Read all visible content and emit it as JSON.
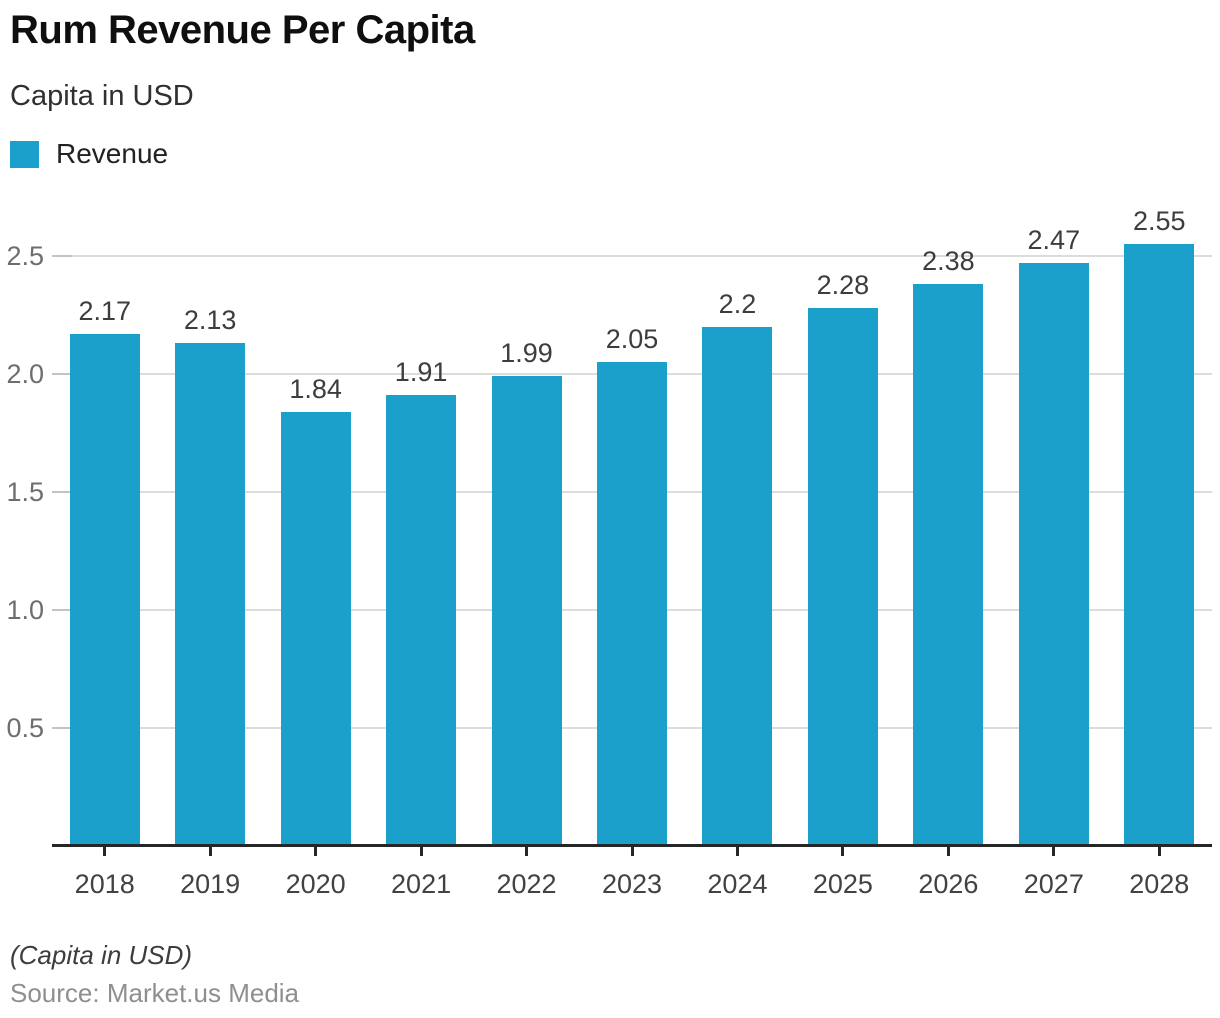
{
  "header": {
    "title": "Rum Revenue Per Capita",
    "subtitle": "Capita in USD",
    "legend": {
      "label": "Revenue",
      "swatch_color": "#1aa0cb"
    }
  },
  "chart_data": {
    "type": "bar",
    "title": "Rum Revenue Per Capita",
    "subtitle": "Capita in USD",
    "categories": [
      "2018",
      "2019",
      "2020",
      "2021",
      "2022",
      "2023",
      "2024",
      "2025",
      "2026",
      "2027",
      "2028"
    ],
    "series": [
      {
        "name": "Revenue",
        "values": [
          2.17,
          2.13,
          1.84,
          1.91,
          1.99,
          2.05,
          2.2,
          2.28,
          2.38,
          2.47,
          2.55
        ]
      }
    ],
    "value_labels": [
      "2.17",
      "2.13",
      "1.84",
      "1.91",
      "1.99",
      "2.05",
      "2.2",
      "2.28",
      "2.38",
      "2.47",
      "2.55"
    ],
    "xlabel": "",
    "ylabel": "",
    "ylim": [
      0,
      2.61
    ],
    "yticks": [
      0.5,
      1.0,
      1.5,
      2.0,
      2.5
    ],
    "ytick_labels": [
      "0.5",
      "1.0",
      "1.5",
      "2.0",
      "2.5"
    ],
    "grid": true,
    "legend_position": "top-left",
    "bar_color": "#1aa0cb",
    "gridline_color": "#dcdcdc",
    "axis_line_color": "#262626"
  },
  "footer": {
    "note": "(Capita in USD)",
    "source": "Source: Market.us Media"
  }
}
